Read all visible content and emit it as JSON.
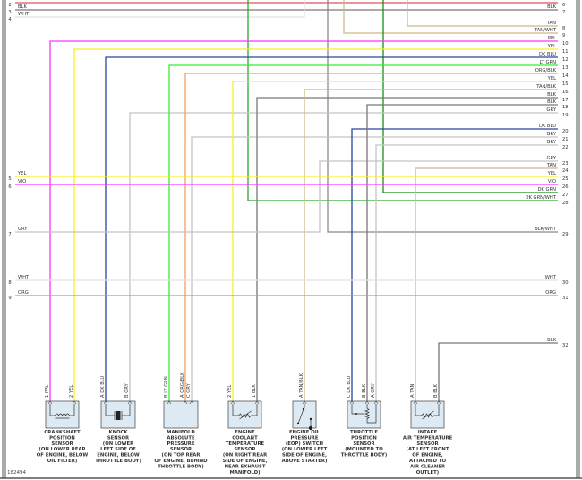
{
  "colors": {
    "RED": "#e05555",
    "BLK": "#777777",
    "WHT": "#e2e2e2",
    "TAN": "#c9b98c",
    "PPL": "#ff33ff",
    "YEL": "#f7f020",
    "DKBLU": "#2a45a0",
    "LTGRN": "#33ee33",
    "ORGBLK": "#f0a060",
    "ORG": "#ff8c10",
    "GRY": "#c4c4c4",
    "DKGRN": "#149014",
    "DKGRNWHT": "#30a830",
    "BLKWHT": "#8a8a8a",
    "sensor_fill": "#dde9f3"
  },
  "left_connector": [
    {
      "pin": "2",
      "label": ""
    },
    {
      "pin": "3",
      "label": "BLK"
    },
    {
      "pin": "4",
      "label": "WHT"
    },
    {
      "pin": "5",
      "label": "YEL"
    },
    {
      "pin": "6",
      "label": "VIO"
    },
    {
      "pin": "7",
      "label": "GRY"
    },
    {
      "pin": "8",
      "label": "WHT"
    },
    {
      "pin": "9",
      "label": "ORG"
    }
  ],
  "right_connector": [
    {
      "pin": "6",
      "label": ""
    },
    {
      "pin": "7",
      "label": "BLK"
    },
    {
      "pin": "8",
      "label": "TAN"
    },
    {
      "pin": "9",
      "label": "TAN/WHT"
    },
    {
      "pin": "10",
      "label": "PPL"
    },
    {
      "pin": "11",
      "label": "YEL"
    },
    {
      "pin": "12",
      "label": "DK BLU"
    },
    {
      "pin": "13",
      "label": "LT GRN"
    },
    {
      "pin": "14",
      "label": "ORG/BLK"
    },
    {
      "pin": "15",
      "label": "YEL"
    },
    {
      "pin": "16",
      "label": "TAN/BLK"
    },
    {
      "pin": "17",
      "label": "BLK"
    },
    {
      "pin": "18",
      "label": "BLK"
    },
    {
      "pin": "19",
      "label": "GRY"
    },
    {
      "pin": "20",
      "label": "DK BLU"
    },
    {
      "pin": "21",
      "label": "GRY"
    },
    {
      "pin": "22",
      "label": "GRY"
    },
    {
      "pin": "23",
      "label": "GRY"
    },
    {
      "pin": "24",
      "label": "TAN"
    },
    {
      "pin": "25",
      "label": "YEL"
    },
    {
      "pin": "26",
      "label": "VIO"
    },
    {
      "pin": "27",
      "label": "DK GRN"
    },
    {
      "pin": "28",
      "label": "DK GRN/WHT"
    },
    {
      "pin": "29",
      "label": "BLK/WHT"
    },
    {
      "pin": "30",
      "label": "WHT"
    },
    {
      "pin": "31",
      "label": "ORG"
    },
    {
      "pin": "32",
      "label": "BLK"
    }
  ],
  "sensors": [
    {
      "id": "crankshaft-position-sensor",
      "icon": "coil-icon",
      "pins": [
        {
          "pin": "1",
          "label": "PPL"
        },
        {
          "pin": "2",
          "label": "YEL"
        }
      ],
      "name": [
        "CRANKSHAFT",
        "POSITION",
        "SENSOR",
        "(ON LOWER REAR",
        "OF ENGINE, BELOW",
        "OIL FILTER)"
      ]
    },
    {
      "id": "knock-sensor",
      "icon": "piezo-crystal-icon",
      "pins": [
        {
          "pin": "A",
          "label": "DK BLU"
        },
        {
          "pin": "B",
          "label": "GRY"
        }
      ],
      "name": [
        "KNOCK",
        "SENSOR",
        "(ON LOWER",
        "LEFT SIDE OF",
        "ENGINE, BELOW",
        "THROTTLE BODY)"
      ]
    },
    {
      "id": "manifold-absolute-pressure-sensor",
      "icon": "",
      "pins": [
        {
          "pin": "B",
          "label": "LT GRN"
        },
        {
          "pin": "A",
          "label": "ORG/BLK"
        },
        {
          "pin": "C",
          "label": "GRY"
        }
      ],
      "name": [
        "MANIFOLD",
        "ABSOLUTE",
        "PRESSURE",
        "SENSOR",
        "(ON TOP REAR",
        "OF ENGINE, BEHIND",
        "THROTTLE BODY)"
      ]
    },
    {
      "id": "engine-coolant-temperature-sensor",
      "icon": "thermistor-icon",
      "pins": [
        {
          "pin": "2",
          "label": "YEL"
        },
        {
          "pin": "1",
          "label": "BLK"
        }
      ],
      "name": [
        "ENGINE",
        "COOLANT",
        "TEMPERATURE",
        "SENSOR",
        "(ON RIGHT REAR",
        "SIDE OF ENGINE,",
        "NEAR EXHAUST",
        "MANIFOLD)"
      ]
    },
    {
      "id": "engine-oil-pressure-switch",
      "icon": "switch-icon",
      "pins": [
        {
          "pin": "A",
          "label": "TAN/BLK"
        }
      ],
      "name": [
        "ENGINE OIL",
        "PRESSURE",
        "(EOP) SWITCH",
        "(ON LOWER LEFT",
        "SIDE OF ENGINE,",
        "ABOVE STARTER)"
      ]
    },
    {
      "id": "throttle-position-sensor",
      "icon": "potentiometer-icon",
      "pins": [
        {
          "pin": "C",
          "label": "DK BLU"
        },
        {
          "pin": "B",
          "label": "BLK"
        },
        {
          "pin": "A",
          "label": "GRY"
        }
      ],
      "name": [
        "THROTTLE",
        "POSITION",
        "SENSOR",
        "(MOUNTED TO",
        "THROTTLE BODY)"
      ]
    },
    {
      "id": "intake-air-temperature-sensor",
      "icon": "thermistor-icon",
      "pins": [
        {
          "pin": "A",
          "label": "TAN"
        },
        {
          "pin": "B",
          "label": "BLK"
        }
      ],
      "name": [
        "INTAKE",
        "AIR TEMPERATURE",
        "SENSOR",
        "(AT LEFT FRONT",
        "OF ENGINE,",
        "ATTACHED TO",
        "AIR CLEANER",
        "OUTLET)"
      ]
    }
  ],
  "footer": {
    "figure_number": "182494"
  }
}
